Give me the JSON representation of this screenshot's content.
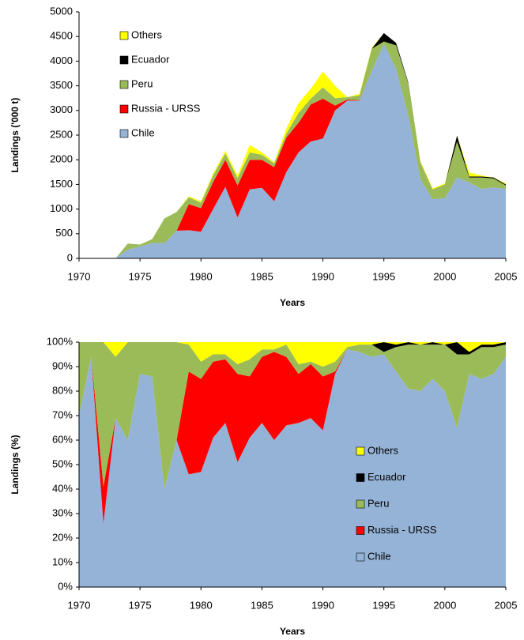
{
  "chart_data": [
    {
      "type": "area",
      "stacked": true,
      "xlabel": "Years",
      "ylabel": "Landings ('000 t)",
      "legend": "upper left",
      "x": [
        1970,
        1971,
        1972,
        1973,
        1974,
        1975,
        1976,
        1977,
        1978,
        1979,
        1980,
        1981,
        1982,
        1983,
        1984,
        1985,
        1986,
        1987,
        1988,
        1989,
        1990,
        1991,
        1992,
        1993,
        1994,
        1995,
        1996,
        1997,
        1998,
        1999,
        2000,
        2001,
        2002,
        2003,
        2004,
        2005
      ],
      "xlim": [
        1970,
        2005
      ],
      "xticks": [
        1970,
        1975,
        1980,
        1985,
        1990,
        1995,
        2000,
        2005
      ],
      "ylim": [
        0,
        5000
      ],
      "yticks": [
        0,
        500,
        1000,
        1500,
        2000,
        2500,
        3000,
        3500,
        4000,
        4500,
        5000
      ],
      "series": [
        {
          "name": "Chile",
          "color": "#95b3d7",
          "values": [
            0,
            0,
            0,
            0,
            180,
            240,
            310,
            310,
            560,
            570,
            540,
            1000,
            1450,
            830,
            1400,
            1430,
            1160,
            1750,
            2150,
            2370,
            2430,
            3000,
            3200,
            3200,
            3800,
            4350,
            3850,
            2900,
            1600,
            1200,
            1220,
            1640,
            1540,
            1410,
            1440,
            1410
          ]
        },
        {
          "name": "Russia - URSS",
          "color": "#ff0000",
          "values": [
            0,
            0,
            0,
            0,
            0,
            0,
            0,
            0,
            0,
            530,
            480,
            550,
            550,
            650,
            600,
            570,
            690,
            700,
            600,
            750,
            810,
            100,
            20,
            10,
            0,
            0,
            0,
            0,
            0,
            0,
            0,
            0,
            0,
            0,
            0,
            0
          ]
        },
        {
          "name": "Peru",
          "color": "#9bbb59",
          "values": [
            0,
            0,
            0,
            0,
            120,
            40,
            80,
            500,
            380,
            140,
            110,
            140,
            130,
            150,
            150,
            100,
            80,
            80,
            200,
            120,
            230,
            150,
            50,
            100,
            450,
            50,
            470,
            650,
            350,
            200,
            280,
            730,
            100,
            230,
            180,
            70
          ]
        },
        {
          "name": "Ecuador",
          "color": "#000000",
          "values": [
            0,
            0,
            0,
            0,
            0,
            0,
            0,
            0,
            0,
            0,
            0,
            0,
            0,
            0,
            0,
            0,
            0,
            0,
            0,
            0,
            0,
            0,
            0,
            0,
            0,
            170,
            50,
            20,
            0,
            0,
            0,
            120,
            20,
            20,
            20,
            20
          ]
        },
        {
          "name": "Others",
          "color": "#ffff00",
          "values": [
            0,
            0,
            0,
            0,
            0,
            0,
            0,
            0,
            0,
            20,
            30,
            30,
            50,
            50,
            150,
            50,
            20,
            100,
            200,
            200,
            320,
            250,
            0,
            30,
            20,
            0,
            0,
            0,
            20,
            20,
            20,
            0,
            80,
            20,
            0,
            20
          ]
        }
      ]
    },
    {
      "type": "area",
      "stacked": true,
      "xlabel": "Years",
      "ylabel": "Landings (%)",
      "legend": "lower right",
      "x": [
        1970,
        1971,
        1972,
        1973,
        1974,
        1975,
        1976,
        1977,
        1978,
        1979,
        1980,
        1981,
        1982,
        1983,
        1984,
        1985,
        1986,
        1987,
        1988,
        1989,
        1990,
        1991,
        1992,
        1993,
        1994,
        1995,
        1996,
        1997,
        1998,
        1999,
        2000,
        2001,
        2002,
        2003,
        2004,
        2005
      ],
      "xlim": [
        1970,
        2005
      ],
      "xticks": [
        1970,
        1975,
        1980,
        1985,
        1990,
        1995,
        2000,
        2005
      ],
      "ylim": [
        0,
        100
      ],
      "yticks": [
        {
          "value": 0,
          "label": "0%"
        },
        {
          "value": 10,
          "label": "10%"
        },
        {
          "value": 20,
          "label": "20%"
        },
        {
          "value": 30,
          "label": "30%"
        },
        {
          "value": 40,
          "label": "40%"
        },
        {
          "value": 50,
          "label": "50%"
        },
        {
          "value": 60,
          "label": "60%"
        },
        {
          "value": 70,
          "label": "70%"
        },
        {
          "value": 80,
          "label": "80%"
        },
        {
          "value": 90,
          "label": "90%"
        },
        {
          "value": 100,
          "label": "100%"
        }
      ],
      "series": [
        {
          "name": "Chile",
          "color": "#95b3d7",
          "values": [
            70,
            94,
            26,
            69,
            60,
            87,
            86,
            40,
            60,
            46,
            47,
            61,
            67,
            51,
            61,
            67,
            60,
            66,
            67,
            69,
            64,
            87,
            97,
            96,
            94,
            95,
            88,
            81,
            80,
            85,
            80,
            65,
            87,
            85,
            87,
            94
          ]
        },
        {
          "name": "Russia - URSS",
          "color": "#ff0000",
          "values": [
            0,
            0,
            15,
            0,
            0,
            0,
            0,
            0,
            0,
            42,
            38,
            31,
            26,
            36,
            25,
            27,
            36,
            28,
            20,
            22,
            22,
            1,
            0,
            0,
            0,
            0,
            0,
            0,
            0,
            0,
            0,
            0,
            0,
            0,
            0,
            0
          ]
        },
        {
          "name": "Peru",
          "color": "#9bbb59",
          "values": [
            30,
            6,
            59,
            25,
            40,
            13,
            14,
            60,
            40,
            11,
            7,
            3,
            2,
            4,
            7,
            3,
            1,
            5,
            4,
            1,
            4,
            4,
            1,
            3,
            5,
            1,
            10,
            18,
            19,
            14,
            19,
            30,
            8,
            13,
            11,
            5
          ]
        },
        {
          "name": "Ecuador",
          "color": "#000000",
          "values": [
            0,
            0,
            0,
            0,
            0,
            0,
            0,
            0,
            0,
            0,
            0,
            0,
            0,
            0,
            0,
            0,
            0,
            0,
            0,
            0,
            0,
            0,
            0,
            0,
            0,
            4,
            1,
            1,
            0,
            1,
            0,
            5,
            1,
            1,
            1,
            1
          ]
        },
        {
          "name": "Others",
          "color": "#ffff00",
          "values": [
            0,
            0,
            0,
            6,
            0,
            0,
            0,
            0,
            0,
            1,
            8,
            5,
            5,
            9,
            7,
            3,
            3,
            1,
            9,
            8,
            10,
            8,
            2,
            1,
            1,
            0,
            1,
            0,
            1,
            0,
            1,
            0,
            4,
            1,
            1,
            0
          ]
        }
      ]
    }
  ]
}
